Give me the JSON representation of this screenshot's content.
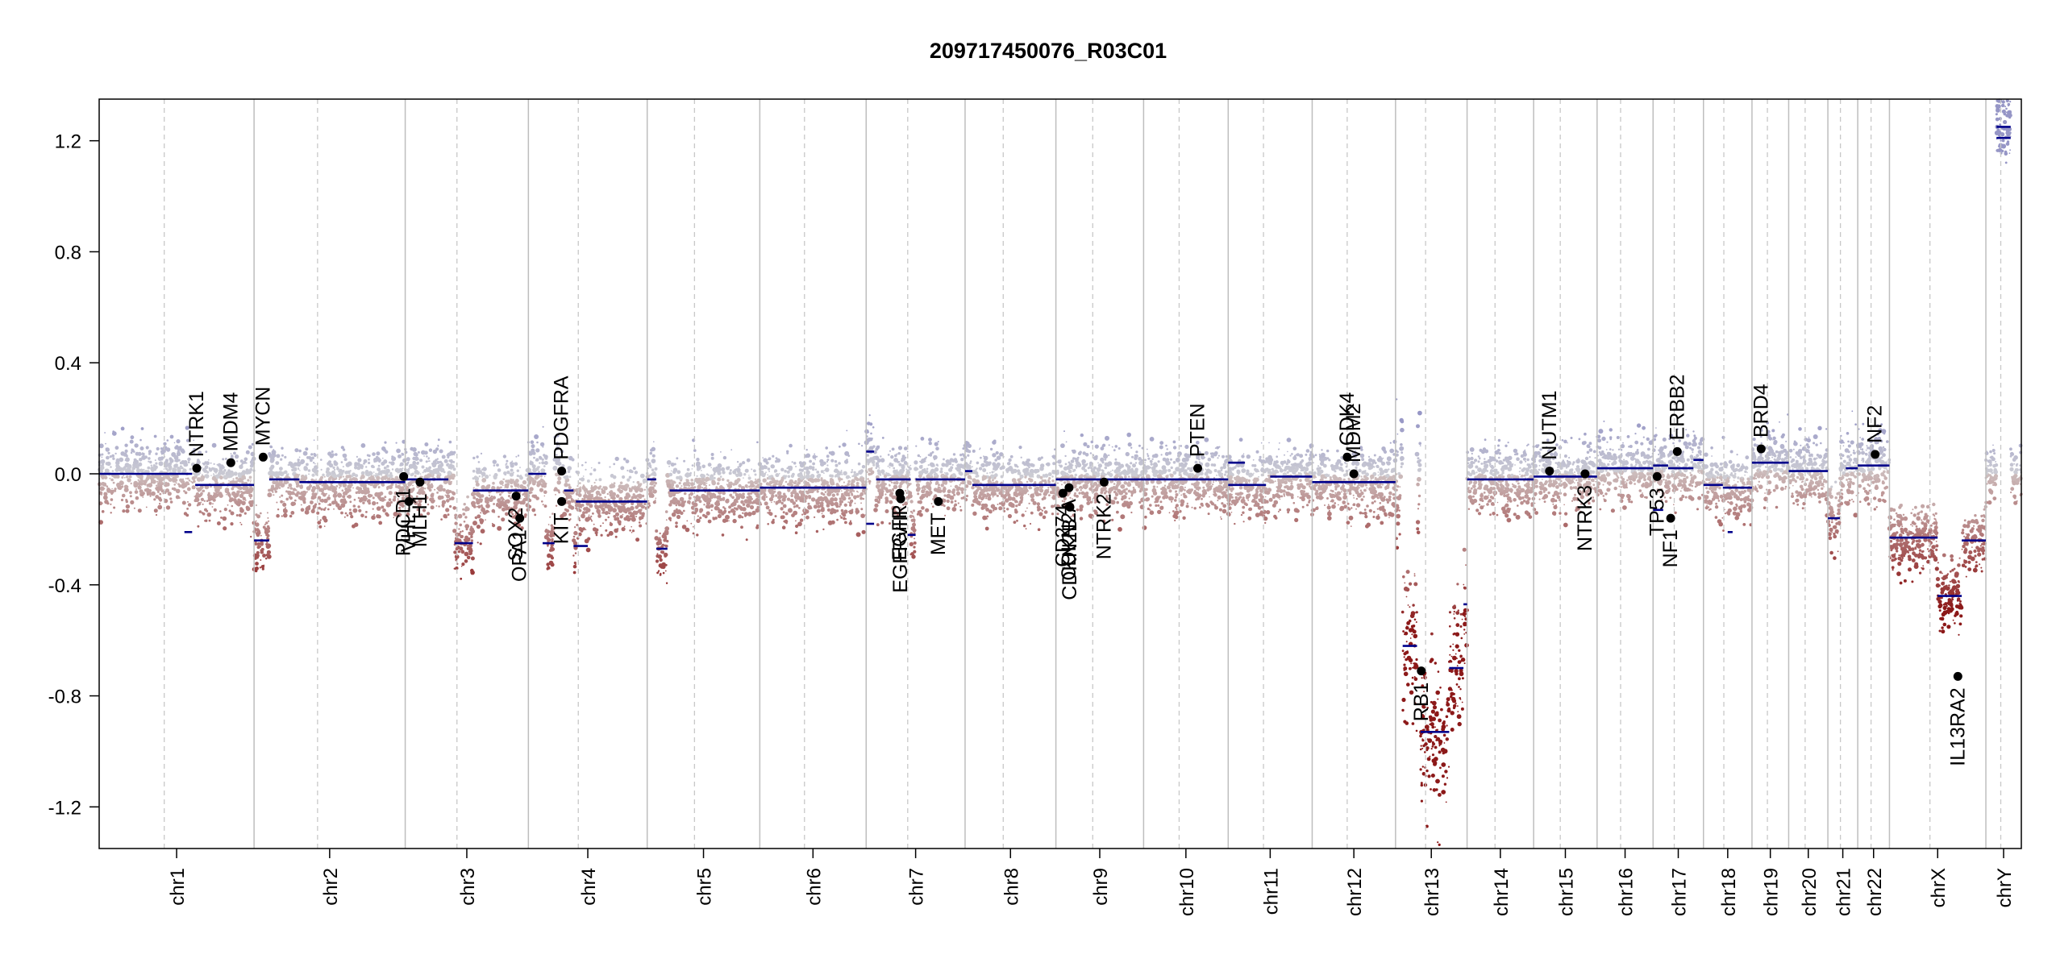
{
  "chart_data": {
    "type": "scatter",
    "title": "209717450076_R03C01",
    "xlabel": "",
    "ylabel": "",
    "ylim": [
      -1.35,
      1.35
    ],
    "yticks": [
      1.2,
      0.8,
      0.4,
      0.0,
      -0.4,
      -0.8,
      -1.2
    ],
    "ytick_labels": [
      "1.2",
      "0.8",
      "0.4",
      "0.0",
      "-0.4",
      "-0.8",
      "-1.2"
    ],
    "chromosomes": [
      {
        "name": "chr1",
        "length": 249
      },
      {
        "name": "chr2",
        "length": 243
      },
      {
        "name": "chr3",
        "length": 198
      },
      {
        "name": "chr4",
        "length": 191
      },
      {
        "name": "chr5",
        "length": 181
      },
      {
        "name": "chr6",
        "length": 171
      },
      {
        "name": "chr7",
        "length": 159
      },
      {
        "name": "chr8",
        "length": 146
      },
      {
        "name": "chr9",
        "length": 141
      },
      {
        "name": "chr10",
        "length": 136
      },
      {
        "name": "chr11",
        "length": 135
      },
      {
        "name": "chr12",
        "length": 134
      },
      {
        "name": "chr13",
        "length": 115
      },
      {
        "name": "chr14",
        "length": 107
      },
      {
        "name": "chr15",
        "length": 102
      },
      {
        "name": "chr16",
        "length": 90
      },
      {
        "name": "chr17",
        "length": 81
      },
      {
        "name": "chr18",
        "length": 78
      },
      {
        "name": "chr19",
        "length": 59
      },
      {
        "name": "chr20",
        "length": 63
      },
      {
        "name": "chr21",
        "length": 48
      },
      {
        "name": "chr22",
        "length": 51
      },
      {
        "name": "chrX",
        "length": 155
      },
      {
        "name": "chrY",
        "length": 57
      }
    ],
    "segments": [
      {
        "chr": "chr1",
        "start": 0.0,
        "end": 0.6,
        "value": 0.0
      },
      {
        "chr": "chr1",
        "start": 0.62,
        "end": 1.0,
        "value": -0.04
      },
      {
        "chr": "chr1",
        "start": 0.55,
        "end": 0.6,
        "value": -0.21
      },
      {
        "chr": "chr2",
        "start": 0.0,
        "end": 0.1,
        "value": -0.24
      },
      {
        "chr": "chr2",
        "start": 0.1,
        "end": 0.3,
        "value": -0.02
      },
      {
        "chr": "chr2",
        "start": 0.3,
        "end": 1.0,
        "value": -0.03
      },
      {
        "chr": "chr3",
        "start": 0.0,
        "end": 0.35,
        "value": -0.02
      },
      {
        "chr": "chr3",
        "start": 0.4,
        "end": 0.55,
        "value": -0.25
      },
      {
        "chr": "chr3",
        "start": 0.55,
        "end": 1.0,
        "value": -0.06
      },
      {
        "chr": "chr4",
        "start": 0.0,
        "end": 0.15,
        "value": 0.0
      },
      {
        "chr": "chr4",
        "start": 0.12,
        "end": 0.22,
        "value": -0.25
      },
      {
        "chr": "chr4",
        "start": 0.3,
        "end": 0.38,
        "value": -0.06
      },
      {
        "chr": "chr4",
        "start": 0.38,
        "end": 0.5,
        "value": -0.26
      },
      {
        "chr": "chr4",
        "start": 0.4,
        "end": 1.0,
        "value": -0.1
      },
      {
        "chr": "chr5",
        "start": 0.0,
        "end": 0.08,
        "value": -0.02
      },
      {
        "chr": "chr5",
        "start": 0.08,
        "end": 0.18,
        "value": -0.27
      },
      {
        "chr": "chr5",
        "start": 0.2,
        "end": 1.0,
        "value": -0.06
      },
      {
        "chr": "chr6",
        "start": 0.0,
        "end": 1.0,
        "value": -0.05
      },
      {
        "chr": "chr7",
        "start": 0.0,
        "end": 0.08,
        "value": 0.08
      },
      {
        "chr": "chr7",
        "start": 0.0,
        "end": 0.08,
        "value": -0.18
      },
      {
        "chr": "chr7",
        "start": 0.1,
        "end": 0.45,
        "value": -0.02
      },
      {
        "chr": "chr7",
        "start": 0.42,
        "end": 0.5,
        "value": -0.22
      },
      {
        "chr": "chr7",
        "start": 0.5,
        "end": 1.0,
        "value": -0.02
      },
      {
        "chr": "chr8",
        "start": 0.0,
        "end": 0.08,
        "value": 0.01
      },
      {
        "chr": "chr8",
        "start": 0.08,
        "end": 1.0,
        "value": -0.04
      },
      {
        "chr": "chr9",
        "start": 0.0,
        "end": 1.0,
        "value": -0.02
      },
      {
        "chr": "chr10",
        "start": 0.0,
        "end": 1.0,
        "value": -0.02
      },
      {
        "chr": "chr11",
        "start": 0.0,
        "end": 0.2,
        "value": 0.04
      },
      {
        "chr": "chr11",
        "start": 0.0,
        "end": 0.45,
        "value": -0.04
      },
      {
        "chr": "chr11",
        "start": 0.5,
        "end": 1.0,
        "value": -0.01
      },
      {
        "chr": "chr12",
        "start": 0.0,
        "end": 1.0,
        "value": -0.03
      },
      {
        "chr": "chr13",
        "start": 0.1,
        "end": 0.3,
        "value": -0.62
      },
      {
        "chr": "chr13",
        "start": 0.35,
        "end": 0.75,
        "value": -0.93
      },
      {
        "chr": "chr13",
        "start": 0.75,
        "end": 0.95,
        "value": -0.7
      },
      {
        "chr": "chr13",
        "start": 0.95,
        "end": 1.0,
        "value": -0.47
      },
      {
        "chr": "chr14",
        "start": 0.0,
        "end": 1.0,
        "value": -0.02
      },
      {
        "chr": "chr15",
        "start": 0.0,
        "end": 1.0,
        "value": -0.01
      },
      {
        "chr": "chr16",
        "start": 0.0,
        "end": 1.0,
        "value": 0.02
      },
      {
        "chr": "chr17",
        "start": 0.0,
        "end": 0.3,
        "value": 0.03
      },
      {
        "chr": "chr17",
        "start": 0.3,
        "end": 0.8,
        "value": 0.02
      },
      {
        "chr": "chr17",
        "start": 0.0,
        "end": 0.2,
        "value": -0.13
      },
      {
        "chr": "chr17",
        "start": 0.8,
        "end": 1.0,
        "value": 0.05
      },
      {
        "chr": "chr18",
        "start": 0.0,
        "end": 0.4,
        "value": -0.04
      },
      {
        "chr": "chr18",
        "start": 0.4,
        "end": 1.0,
        "value": -0.05
      },
      {
        "chr": "chr18",
        "start": 0.5,
        "end": 0.6,
        "value": -0.21
      },
      {
        "chr": "chr19",
        "start": 0.0,
        "end": 1.0,
        "value": 0.04
      },
      {
        "chr": "chr20",
        "start": 0.0,
        "end": 1.0,
        "value": 0.01
      },
      {
        "chr": "chr21",
        "start": 0.0,
        "end": 0.4,
        "value": -0.16
      },
      {
        "chr": "chr21",
        "start": 0.6,
        "end": 1.0,
        "value": 0.02
      },
      {
        "chr": "chr22",
        "start": 0.0,
        "end": 1.0,
        "value": 0.03
      },
      {
        "chr": "chrX",
        "start": 0.0,
        "end": 0.5,
        "value": -0.23
      },
      {
        "chr": "chrX",
        "start": 0.5,
        "end": 0.75,
        "value": -0.44
      },
      {
        "chr": "chrX",
        "start": 0.75,
        "end": 1.0,
        "value": -0.24
      },
      {
        "chr": "chrY",
        "start": 0.3,
        "end": 0.7,
        "value": 1.25
      },
      {
        "chr": "chrY",
        "start": 0.3,
        "end": 0.7,
        "value": 1.21
      }
    ],
    "genes": [
      {
        "name": "NTRK1",
        "chr": "chr1",
        "pos": 0.63,
        "value": 0.02,
        "label_side": "above"
      },
      {
        "name": "MDM4",
        "chr": "chr1",
        "pos": 0.85,
        "value": 0.04,
        "label_side": "above"
      },
      {
        "name": "MYCN",
        "chr": "chr2",
        "pos": 0.06,
        "value": 0.06,
        "label_side": "above"
      },
      {
        "name": "PDCD1",
        "chr": "chr2",
        "pos": 0.99,
        "value": -0.01,
        "label_side": "below"
      },
      {
        "name": "VHL",
        "chr": "chr3",
        "pos": 0.03,
        "value": -0.1,
        "label_side": "below"
      },
      {
        "name": "MLH1",
        "chr": "chr3",
        "pos": 0.12,
        "value": -0.03,
        "label_side": "below"
      },
      {
        "name": "SOX2",
        "chr": "chr3",
        "pos": 0.9,
        "value": -0.08,
        "label_side": "below"
      },
      {
        "name": "OPA1",
        "chr": "chr3",
        "pos": 0.93,
        "value": -0.16,
        "label_side": "below"
      },
      {
        "name": "PDGFRA",
        "chr": "chr4",
        "pos": 0.28,
        "value": 0.01,
        "label_side": "above"
      },
      {
        "name": "KIT",
        "chr": "chr4",
        "pos": 0.28,
        "value": -0.1,
        "label_side": "below"
      },
      {
        "name": "EGFR",
        "chr": "chr7",
        "pos": 0.34,
        "value": -0.07,
        "label_side": "below"
      },
      {
        "name": "EGFRvIII",
        "chr": "chr7",
        "pos": 0.35,
        "value": -0.09,
        "label_side": "below"
      },
      {
        "name": "MET",
        "chr": "chr7",
        "pos": 0.73,
        "value": -0.1,
        "label_side": "below"
      },
      {
        "name": "CDKN2A",
        "chr": "chr9",
        "pos": 0.15,
        "value": -0.05,
        "label_side": "below"
      },
      {
        "name": "CDKN2B",
        "chr": "chr9",
        "pos": 0.16,
        "value": -0.12,
        "label_side": "below"
      },
      {
        "name": "CD274",
        "chr": "chr9",
        "pos": 0.08,
        "value": -0.07,
        "label_side": "below"
      },
      {
        "name": "NTRK2",
        "chr": "chr9",
        "pos": 0.55,
        "value": -0.03,
        "label_side": "below"
      },
      {
        "name": "PTEN",
        "chr": "chr10",
        "pos": 0.64,
        "value": 0.02,
        "label_side": "above"
      },
      {
        "name": "CDK4",
        "chr": "chr12",
        "pos": 0.42,
        "value": 0.06,
        "label_side": "above"
      },
      {
        "name": "MDM2",
        "chr": "chr12",
        "pos": 0.5,
        "value": 0.0,
        "label_side": "above"
      },
      {
        "name": "RB1",
        "chr": "chr13",
        "pos": 0.36,
        "value": -0.71,
        "label_side": "below"
      },
      {
        "name": "NUTM1",
        "chr": "chr15",
        "pos": 0.25,
        "value": 0.01,
        "label_side": "above"
      },
      {
        "name": "NTRK3",
        "chr": "chr15",
        "pos": 0.81,
        "value": 0.0,
        "label_side": "below"
      },
      {
        "name": "TP53",
        "chr": "chr17",
        "pos": 0.08,
        "value": -0.01,
        "label_side": "below"
      },
      {
        "name": "NF1",
        "chr": "chr17",
        "pos": 0.35,
        "value": -0.16,
        "label_side": "below"
      },
      {
        "name": "ERBB2",
        "chr": "chr17",
        "pos": 0.48,
        "value": 0.08,
        "label_side": "above"
      },
      {
        "name": "BRD4",
        "chr": "chr19",
        "pos": 0.25,
        "value": 0.09,
        "label_side": "above"
      },
      {
        "name": "NF2",
        "chr": "chr22",
        "pos": 0.55,
        "value": 0.07,
        "label_side": "above"
      },
      {
        "name": "IL13RA2",
        "chr": "chrX",
        "pos": 0.71,
        "value": -0.73,
        "label_side": "below"
      }
    ],
    "colors": {
      "segment": "#00008B",
      "gain": "#8C8CC4",
      "neutral": "#BDBDBD",
      "loss": "#8B1A1A",
      "grid_solid": "#BEBEBE",
      "grid_dashed": "#C8C8C8"
    }
  }
}
